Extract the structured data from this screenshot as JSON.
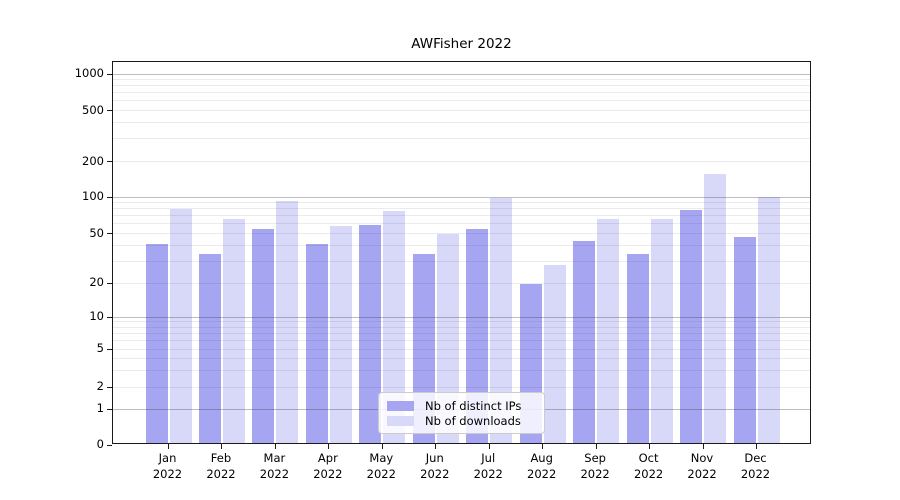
{
  "title": "AWFisher 2022",
  "chart_data": {
    "type": "bar",
    "title": "AWFisher 2022",
    "categories": [
      "Jan",
      "Feb",
      "Mar",
      "Apr",
      "May",
      "Jun",
      "Jul",
      "Aug",
      "Sep",
      "Oct",
      "Nov",
      "Dec"
    ],
    "category_year": "2022",
    "series": [
      {
        "name": "Nb of distinct IPs",
        "color": "#a5a5f2",
        "values": [
          40,
          33,
          52,
          40,
          57,
          33,
          52,
          19,
          42,
          33,
          75,
          45
        ]
      },
      {
        "name": "Nb of downloads",
        "color": "#d8d8f8",
        "values": [
          77,
          64,
          90,
          56,
          74,
          48,
          94,
          27,
          64,
          64,
          150,
          96
        ]
      }
    ],
    "yscale": "symlog",
    "yticks": [
      0,
      1,
      2,
      5,
      10,
      20,
      50,
      100,
      200,
      500,
      1000
    ],
    "major_grid_values": [
      1,
      10,
      100,
      1000
    ],
    "ylim": [
      0,
      1250
    ],
    "grid": true,
    "legend_position": "lower center",
    "xlabel": "",
    "ylabel": ""
  }
}
